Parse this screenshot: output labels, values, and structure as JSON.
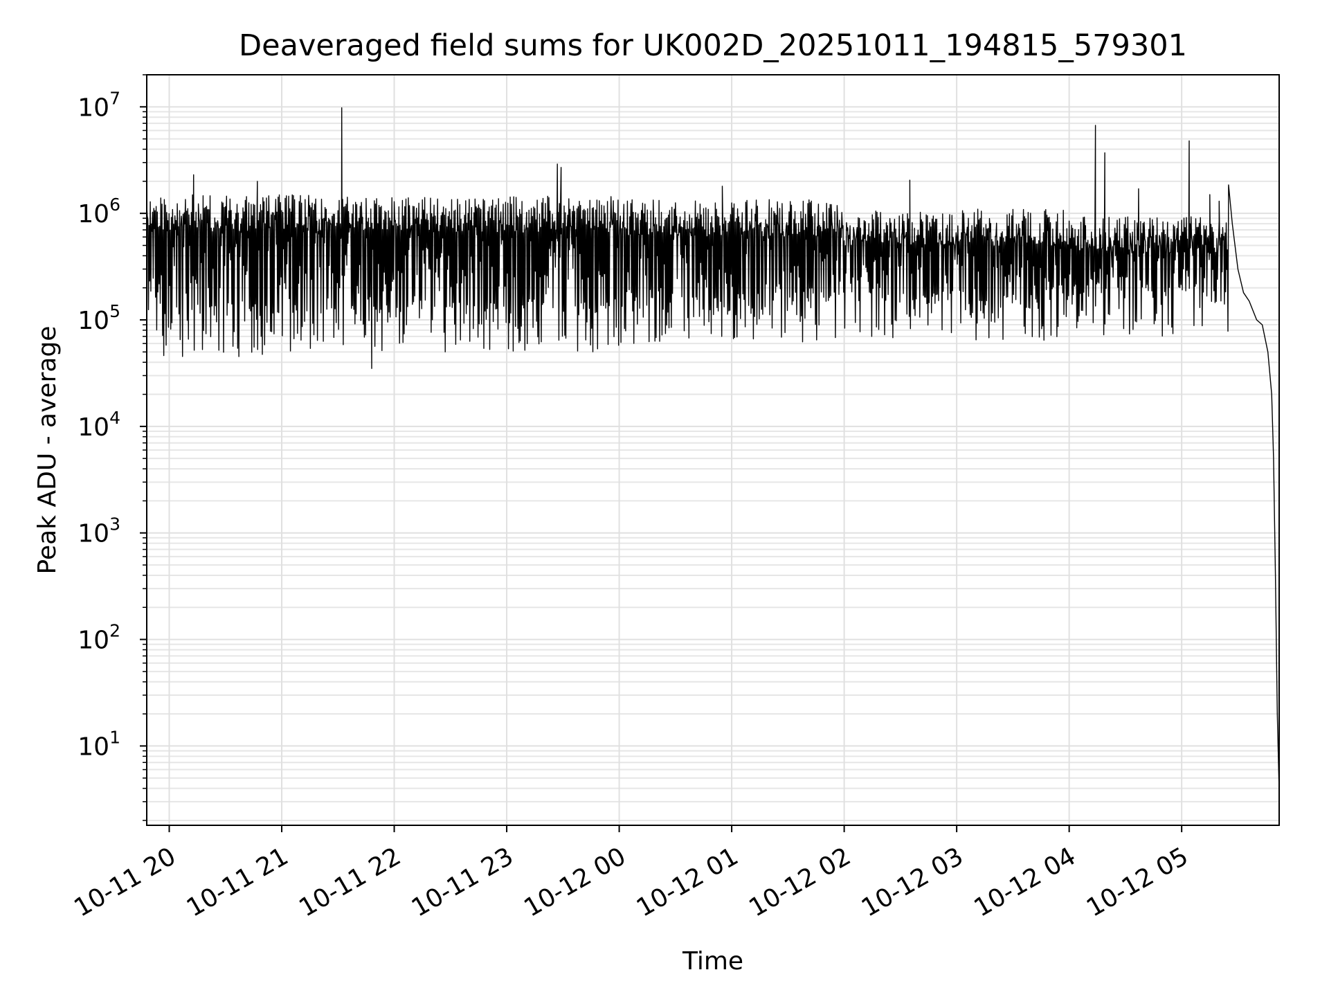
{
  "chart_data": {
    "type": "line",
    "title": "Deaveraged field sums for UK002D_20251011_194815_579301",
    "xlabel": "Time",
    "ylabel": "Peak ADU - average",
    "y_scale": "log",
    "ylim": [
      1.8,
      20000000
    ],
    "xlim": [
      "2025-10-11 19:48",
      "2025-10-12 05:52"
    ],
    "grid": true,
    "legend": "none",
    "line_color": "#000000",
    "x_ticks": [
      {
        "label": "10-11 20",
        "time": "2025-10-11 20:00"
      },
      {
        "label": "10-11 21",
        "time": "2025-10-11 21:00"
      },
      {
        "label": "10-11 22",
        "time": "2025-10-11 22:00"
      },
      {
        "label": "10-11 23",
        "time": "2025-10-11 23:00"
      },
      {
        "label": "10-12 00",
        "time": "2025-10-12 00:00"
      },
      {
        "label": "10-12 01",
        "time": "2025-10-12 01:00"
      },
      {
        "label": "10-12 02",
        "time": "2025-10-12 02:00"
      },
      {
        "label": "10-12 03",
        "time": "2025-10-12 03:00"
      },
      {
        "label": "10-12 04",
        "time": "2025-10-12 04:00"
      },
      {
        "label": "10-12 05",
        "time": "2025-10-12 05:00"
      }
    ],
    "y_ticks": [
      {
        "base": "10",
        "exp": "1",
        "value": 10
      },
      {
        "base": "10",
        "exp": "2",
        "value": 100
      },
      {
        "base": "10",
        "exp": "3",
        "value": 1000
      },
      {
        "base": "10",
        "exp": "4",
        "value": 10000
      },
      {
        "base": "10",
        "exp": "5",
        "value": 100000
      },
      {
        "base": "10",
        "exp": "6",
        "value": 1000000
      },
      {
        "base": "10",
        "exp": "7",
        "value": 10000000
      }
    ],
    "envelope": {
      "note_range": "approximate per-segment range of the dense signal",
      "segments": [
        {
          "start": "2025-10-11 19:48",
          "end": "2025-10-11 21:30",
          "upper": 1500000,
          "lower": 45000
        },
        {
          "start": "2025-10-11 21:30",
          "end": "2025-10-12 00:00",
          "upper": 1450000,
          "lower": 50000
        },
        {
          "start": "2025-10-12 00:00",
          "end": "2025-10-12 02:00",
          "upper": 1350000,
          "lower": 60000
        },
        {
          "start": "2025-10-12 02:00",
          "end": "2025-10-12 04:00",
          "upper": 1100000,
          "lower": 60000
        },
        {
          "start": "2025-10-12 04:00",
          "end": "2025-10-12 05:25",
          "upper": 950000,
          "lower": 70000
        }
      ]
    },
    "series": [
      {
        "values": [
          {
            "time": "2025-10-11 20:13",
            "value": 2300000
          },
          {
            "time": "2025-10-11 20:47",
            "value": 2000000
          },
          {
            "time": "2025-10-11 21:32",
            "value": 9800000
          },
          {
            "time": "2025-10-11 21:48",
            "value": 35000
          },
          {
            "time": "2025-10-11 23:27",
            "value": 2900000
          },
          {
            "time": "2025-10-11 23:29",
            "value": 2700000
          },
          {
            "time": "2025-10-12 00:55",
            "value": 1800000
          },
          {
            "time": "2025-10-12 02:35",
            "value": 2050000
          },
          {
            "time": "2025-10-12 04:14",
            "value": 6700000
          },
          {
            "time": "2025-10-12 04:19",
            "value": 3700000
          },
          {
            "time": "2025-10-12 04:37",
            "value": 1700000
          },
          {
            "time": "2025-10-12 05:04",
            "value": 4800000
          },
          {
            "time": "2025-10-12 05:15",
            "value": 1500000
          },
          {
            "time": "2025-10-12 05:20",
            "value": 1300000
          },
          {
            "time": "2025-10-12 05:25",
            "value": 1850000
          },
          {
            "time": "2025-10-12 05:27",
            "value": 800000
          },
          {
            "time": "2025-10-12 05:30",
            "value": 300000
          },
          {
            "time": "2025-10-12 05:33",
            "value": 180000
          },
          {
            "time": "2025-10-12 05:36",
            "value": 150000
          },
          {
            "time": "2025-10-12 05:40",
            "value": 100000
          },
          {
            "time": "2025-10-12 05:43",
            "value": 90000
          },
          {
            "time": "2025-10-12 05:46",
            "value": 50000
          },
          {
            "time": "2025-10-12 05:48",
            "value": 20000
          },
          {
            "time": "2025-10-12 05:49",
            "value": 5000
          },
          {
            "time": "2025-10-12 05:50",
            "value": 400
          },
          {
            "time": "2025-10-12 05:51",
            "value": 20
          },
          {
            "time": "2025-10-12 05:52",
            "value": 3.8
          }
        ]
      }
    ]
  }
}
